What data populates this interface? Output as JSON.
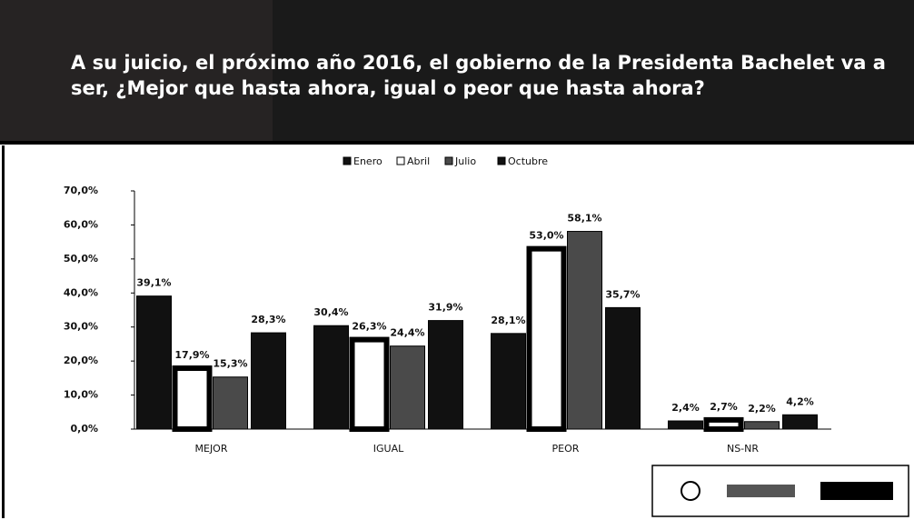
{
  "chart_data": {
    "type": "bar",
    "title": "A su juicio, el próximo año 2016, el gobierno de la Presidenta Bachelet va a ser, ¿Mejor que hasta ahora, igual o peor que hasta ahora?",
    "categories": [
      "MEJOR",
      "IGUAL",
      "PEOR",
      "NS-NR"
    ],
    "series": [
      {
        "name": "Enero",
        "color": "#111111",
        "values": [
          39.1,
          30.4,
          28.1,
          2.4
        ],
        "value_labels": [
          "39,1%",
          "30,4%",
          "28,1%",
          "2,4%"
        ]
      },
      {
        "name": "Abril",
        "color": "#ffffff",
        "values": [
          17.9,
          26.3,
          53.0,
          2.7
        ],
        "value_labels": [
          "17,9%",
          "26,3%",
          "53,0%",
          "2,7%"
        ]
      },
      {
        "name": "Julio",
        "color": "#4a4a4a",
        "values": [
          15.3,
          24.4,
          58.1,
          2.2
        ],
        "value_labels": [
          "15,3%",
          "24,4%",
          "58,1%",
          "2,2%"
        ]
      },
      {
        "name": "Octubre",
        "color": "#111111",
        "values": [
          28.3,
          31.9,
          35.7,
          4.2
        ],
        "value_labels": [
          "28,3%",
          "31,9%",
          "35,7%",
          "4,2%"
        ]
      }
    ],
    "ylim": [
      0,
      70
    ],
    "yticks": [
      {
        "value": 0,
        "label": "0,0%"
      },
      {
        "value": 10,
        "label": "10,0%"
      },
      {
        "value": 20,
        "label": "20,0%"
      },
      {
        "value": 30,
        "label": "30,0%"
      },
      {
        "value": 40,
        "label": "40,0%"
      },
      {
        "value": 50,
        "label": "50,0%"
      },
      {
        "value": 60,
        "label": "60,0%"
      },
      {
        "value": 70,
        "label": "70,0%"
      }
    ],
    "legend": "top"
  }
}
